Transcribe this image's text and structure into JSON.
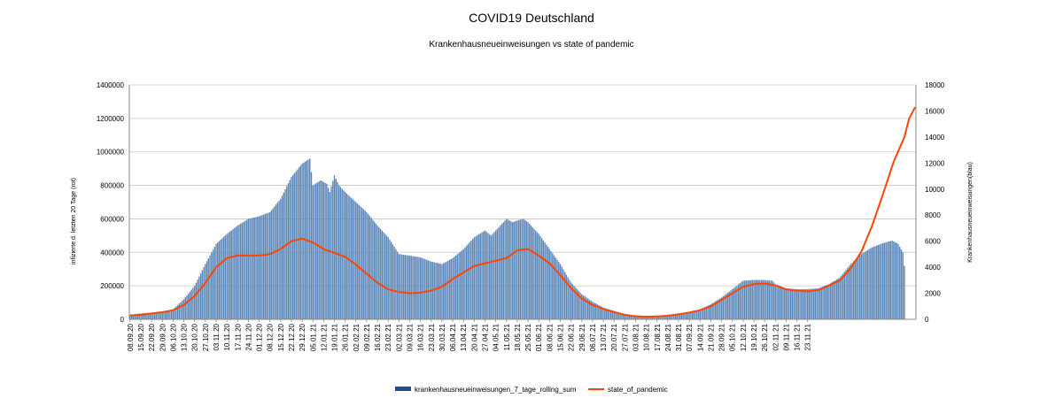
{
  "chart_data": {
    "type": "bar+line",
    "title": "COVID19 Deutschland",
    "subtitle": "Krankenhausneueinweisungen vs state of pandemic",
    "ylabel_left": "infizierte d. letzten 20 Tage (rot)",
    "ylabel_right": "Krankenhausneueinweisungen(blau)",
    "ylim_left": [
      0,
      1400000
    ],
    "ylim_right": [
      0,
      18000
    ],
    "yticks_left": [
      "0",
      "200000",
      "400000",
      "600000",
      "800000",
      "1000000",
      "1200000",
      "1400000"
    ],
    "yticks_right": [
      "0",
      "2000",
      "4000",
      "6000",
      "8000",
      "10000",
      "12000",
      "14000",
      "16000",
      "18000"
    ],
    "grid": true,
    "legend_position": "bottom",
    "x_tick_labels": [
      "08.09.20",
      "15.09.20",
      "22.09.20",
      "29.09.20",
      "06.10.20",
      "13.10.20",
      "20.10.20",
      "27.10.20",
      "03.11.20",
      "10.11.20",
      "17.11.20",
      "24.11.20",
      "01.12.20",
      "08.12.20",
      "15.12.20",
      "22.12.20",
      "29.12.20",
      "05.01.21",
      "12.01.21",
      "19.01.21",
      "26.01.21",
      "02.02.21",
      "09.02.21",
      "16.02.21",
      "23.02.21",
      "02.03.21",
      "09.03.21",
      "16.03.21",
      "23.03.21",
      "30.03.21",
      "06.04.21",
      "13.04.21",
      "20.04.21",
      "27.04.21",
      "04.05.21",
      "11.05.21",
      "18.05.21",
      "25.05.21",
      "01.06.21",
      "08.06.21",
      "15.06.21",
      "22.06.21",
      "29.06.21",
      "06.07.21",
      "13.07.21",
      "20.07.21",
      "27.07.21",
      "03.08.21",
      "10.08.21",
      "17.08.21",
      "24.08.21",
      "31.08.21",
      "07.09.21",
      "14.09.21",
      "21.09.21",
      "28.09.21",
      "05.10.21",
      "12.10.21",
      "19.10.21",
      "26.10.21",
      "02.11.21",
      "09.11.21",
      "16.11.21",
      "23.11.21"
    ],
    "series": [
      {
        "name": "krankenhausneueinweisungen_7_tage_rolling_sum",
        "type": "bar",
        "axis": "left",
        "color": "#5a86b8",
        "knots": [
          [
            0,
            25000
          ],
          [
            3,
            30000
          ],
          [
            7,
            35000
          ],
          [
            14,
            40000
          ],
          [
            21,
            45000
          ],
          [
            28,
            60000
          ],
          [
            35,
            120000
          ],
          [
            42,
            200000
          ],
          [
            49,
            330000
          ],
          [
            56,
            450000
          ],
          [
            63,
            510000
          ],
          [
            70,
            560000
          ],
          [
            77,
            600000
          ],
          [
            84,
            615000
          ],
          [
            91,
            640000
          ],
          [
            98,
            720000
          ],
          [
            105,
            850000
          ],
          [
            112,
            930000
          ],
          [
            117,
            960000
          ],
          [
            119,
            800000
          ],
          [
            124,
            830000
          ],
          [
            128,
            810000
          ],
          [
            130,
            760000
          ],
          [
            133,
            860000
          ],
          [
            136,
            800000
          ],
          [
            140,
            760000
          ],
          [
            147,
            700000
          ],
          [
            154,
            640000
          ],
          [
            161,
            560000
          ],
          [
            168,
            490000
          ],
          [
            175,
            390000
          ],
          [
            182,
            380000
          ],
          [
            189,
            370000
          ],
          [
            196,
            345000
          ],
          [
            203,
            330000
          ],
          [
            210,
            365000
          ],
          [
            217,
            420000
          ],
          [
            224,
            490000
          ],
          [
            231,
            530000
          ],
          [
            235,
            500000
          ],
          [
            238,
            530000
          ],
          [
            245,
            600000
          ],
          [
            249,
            580000
          ],
          [
            252,
            590000
          ],
          [
            256,
            600000
          ],
          [
            259,
            580000
          ],
          [
            266,
            510000
          ],
          [
            273,
            420000
          ],
          [
            280,
            330000
          ],
          [
            287,
            220000
          ],
          [
            294,
            150000
          ],
          [
            301,
            105000
          ],
          [
            308,
            70000
          ],
          [
            315,
            50000
          ],
          [
            322,
            30000
          ],
          [
            329,
            20000
          ],
          [
            336,
            18000
          ],
          [
            343,
            20000
          ],
          [
            350,
            25000
          ],
          [
            357,
            35000
          ],
          [
            364,
            45000
          ],
          [
            371,
            60000
          ],
          [
            378,
            90000
          ],
          [
            385,
            130000
          ],
          [
            392,
            180000
          ],
          [
            399,
            230000
          ],
          [
            406,
            235000
          ],
          [
            413,
            235000
          ],
          [
            418,
            230000
          ],
          [
            420,
            210000
          ],
          [
            427,
            185000
          ],
          [
            434,
            180000
          ],
          [
            441,
            180000
          ],
          [
            448,
            185000
          ],
          [
            455,
            210000
          ],
          [
            462,
            250000
          ],
          [
            469,
            330000
          ],
          [
            476,
            390000
          ],
          [
            483,
            430000
          ],
          [
            490,
            455000
          ],
          [
            496,
            470000
          ],
          [
            500,
            450000
          ],
          [
            503,
            400000
          ],
          [
            504,
            320000
          ],
          [
            505,
            0
          ],
          [
            510,
            0
          ]
        ]
      },
      {
        "name": "state_of_pandemic",
        "type": "line",
        "axis": "right",
        "color": "#ff4500",
        "knots": [
          [
            0,
            300
          ],
          [
            7,
            350
          ],
          [
            14,
            450
          ],
          [
            21,
            550
          ],
          [
            28,
            700
          ],
          [
            35,
            1100
          ],
          [
            42,
            1800
          ],
          [
            49,
            2800
          ],
          [
            56,
            4000
          ],
          [
            63,
            4700
          ],
          [
            70,
            4900
          ],
          [
            77,
            4900
          ],
          [
            84,
            4900
          ],
          [
            91,
            5000
          ],
          [
            98,
            5400
          ],
          [
            105,
            6000
          ],
          [
            112,
            6200
          ],
          [
            119,
            5900
          ],
          [
            126,
            5400
          ],
          [
            133,
            5100
          ],
          [
            140,
            4800
          ],
          [
            147,
            4200
          ],
          [
            154,
            3500
          ],
          [
            161,
            2800
          ],
          [
            168,
            2300
          ],
          [
            175,
            2100
          ],
          [
            182,
            2000
          ],
          [
            189,
            2050
          ],
          [
            196,
            2200
          ],
          [
            203,
            2500
          ],
          [
            210,
            3100
          ],
          [
            217,
            3600
          ],
          [
            224,
            4100
          ],
          [
            231,
            4300
          ],
          [
            238,
            4500
          ],
          [
            245,
            4700
          ],
          [
            252,
            5300
          ],
          [
            259,
            5400
          ],
          [
            266,
            4900
          ],
          [
            273,
            4300
          ],
          [
            280,
            3400
          ],
          [
            287,
            2400
          ],
          [
            294,
            1600
          ],
          [
            301,
            1100
          ],
          [
            308,
            800
          ],
          [
            315,
            550
          ],
          [
            322,
            350
          ],
          [
            329,
            230
          ],
          [
            336,
            200
          ],
          [
            343,
            220
          ],
          [
            350,
            280
          ],
          [
            357,
            380
          ],
          [
            364,
            520
          ],
          [
            371,
            700
          ],
          [
            378,
            1000
          ],
          [
            385,
            1500
          ],
          [
            392,
            2000
          ],
          [
            399,
            2500
          ],
          [
            406,
            2700
          ],
          [
            413,
            2750
          ],
          [
            420,
            2600
          ],
          [
            427,
            2300
          ],
          [
            434,
            2200
          ],
          [
            441,
            2150
          ],
          [
            448,
            2250
          ],
          [
            455,
            2600
          ],
          [
            462,
            3000
          ],
          [
            469,
            3900
          ],
          [
            476,
            5200
          ],
          [
            483,
            7200
          ],
          [
            490,
            9600
          ],
          [
            497,
            12100
          ],
          [
            504,
            14000
          ],
          [
            507,
            15400
          ],
          [
            511,
            16300
          ]
        ]
      }
    ]
  }
}
